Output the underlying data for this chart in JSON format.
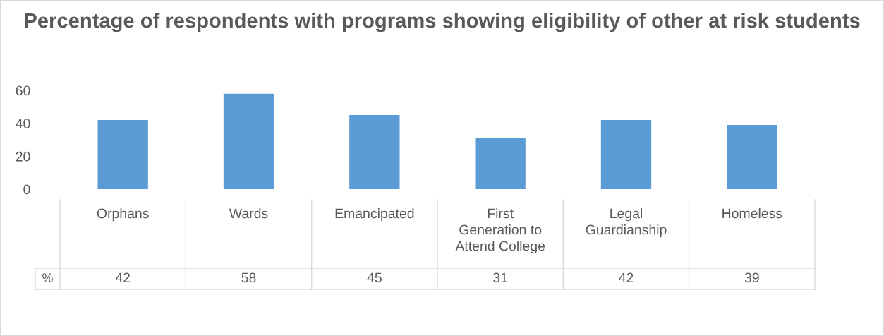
{
  "chart_data": {
    "type": "bar",
    "title": "Percentage of respondents with programs showing eligibility of other at risk students",
    "categories": [
      "Orphans",
      "Wards",
      "Emancipated",
      "First\nGeneration to\nAttend College",
      "Legal\nGuardianship",
      "Homeless"
    ],
    "series": [
      {
        "name": "%",
        "color": "#5b9bd5",
        "values": [
          42,
          58,
          45,
          31,
          42,
          39
        ]
      }
    ],
    "ylim": [
      0,
      60
    ],
    "yticks": [
      0,
      20,
      40,
      60
    ],
    "grid": false,
    "legend": false,
    "data_labels": true
  }
}
